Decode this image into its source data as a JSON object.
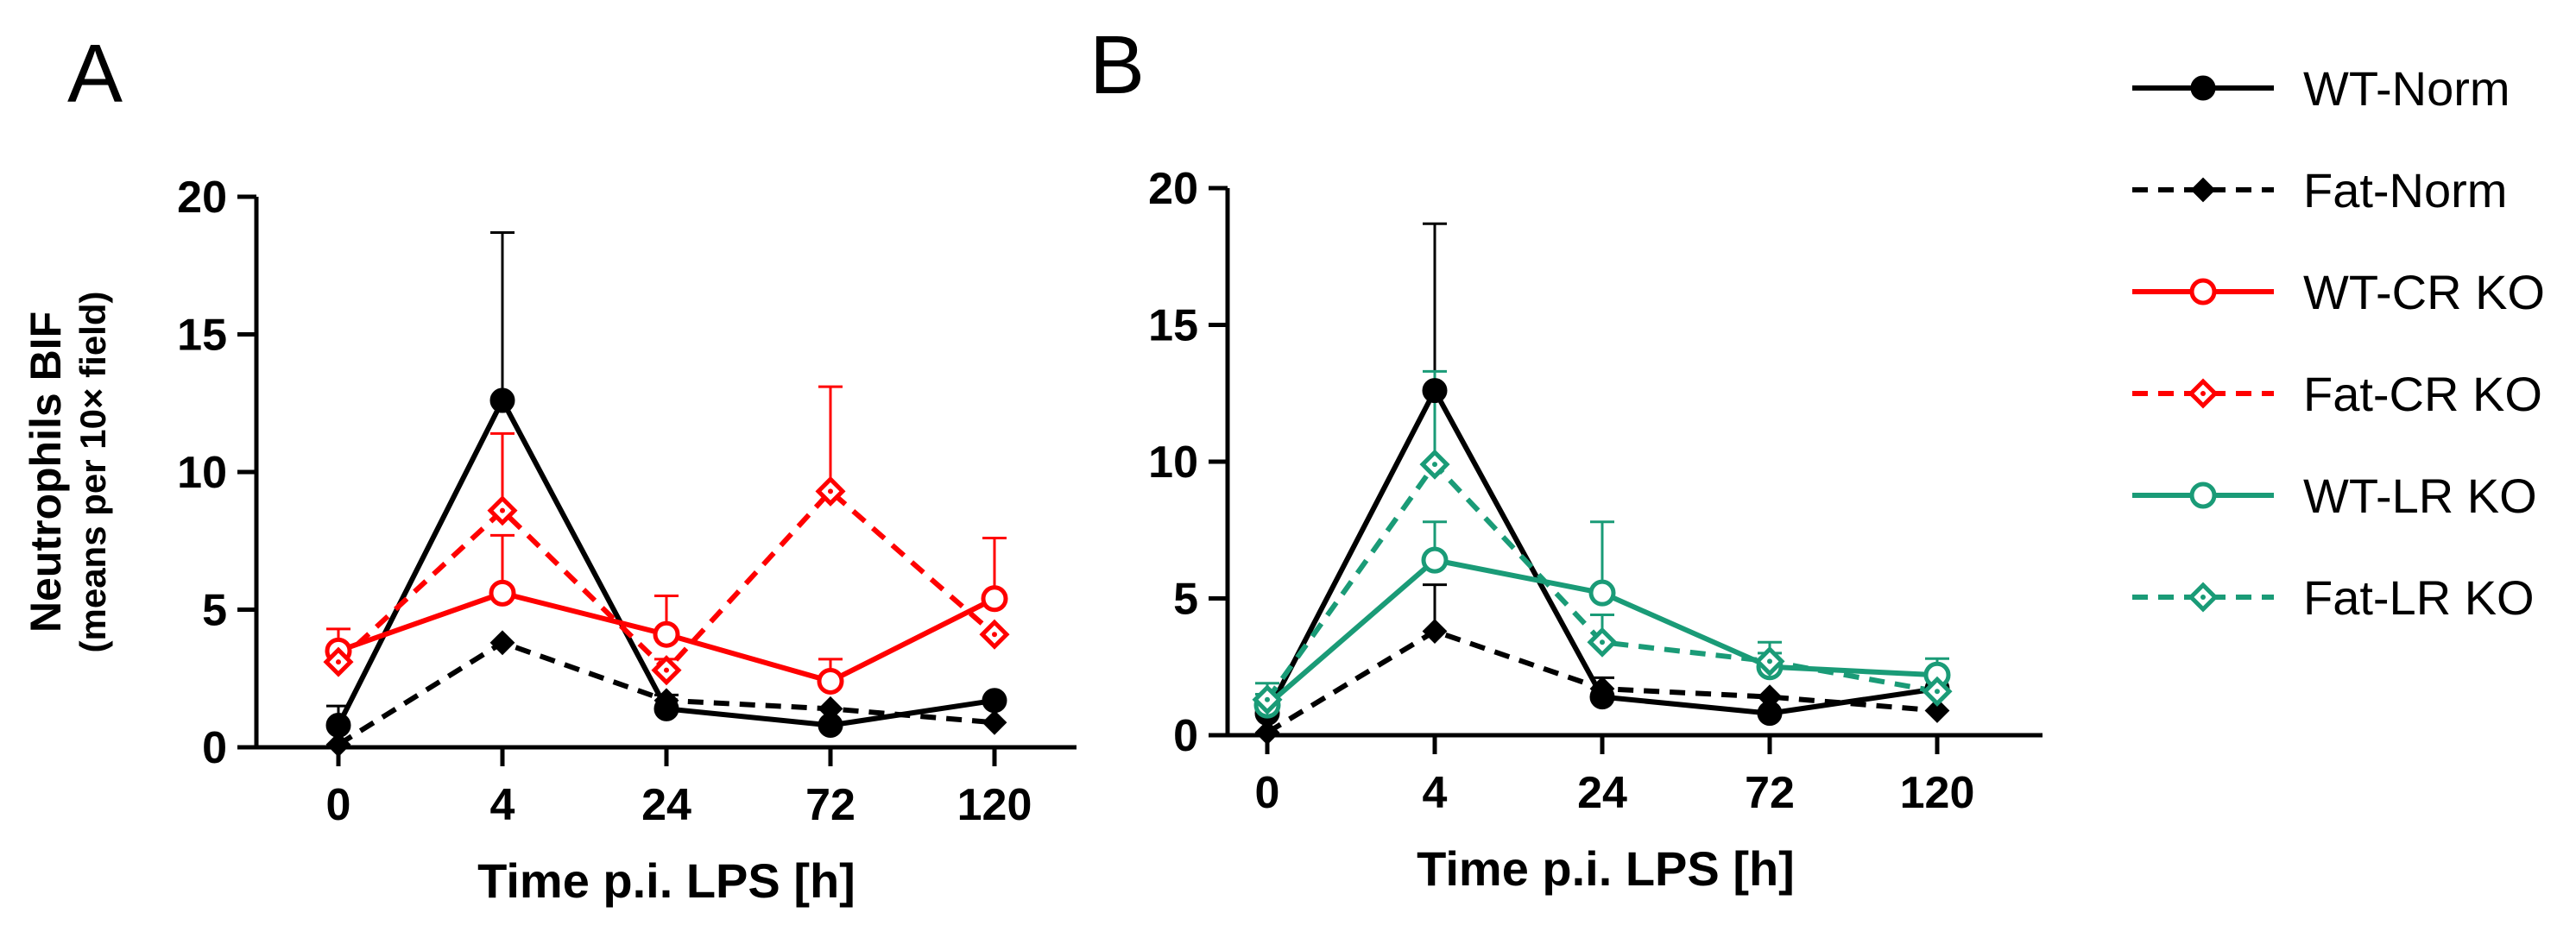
{
  "chart_data": [
    {
      "panel": "A",
      "type": "line",
      "categories": [
        "0",
        "4",
        "24",
        "72",
        "120"
      ],
      "xlabel": "Time p.i. LPS [h]",
      "ylabel": "Neutrophils BIF",
      "ylabel_sub": "(means per 10× field)",
      "ylim": [
        0,
        20
      ],
      "yticks": [
        "0",
        "5",
        "10",
        "15",
        "20"
      ],
      "series": [
        {
          "name": "WT-Norm",
          "color": "#000000",
          "dash": "solid",
          "marker": "circle-filled",
          "values": [
            0.8,
            12.6,
            1.4,
            0.8,
            1.7
          ],
          "err": [
            0.7,
            6.1,
            0,
            0,
            0
          ]
        },
        {
          "name": "Fat-Norm",
          "color": "#000000",
          "dash": "dashed",
          "marker": "diamond-filled",
          "values": [
            0.1,
            3.8,
            1.7,
            1.4,
            0.9
          ],
          "err": [
            0,
            0,
            0.2,
            0,
            0
          ]
        },
        {
          "name": "WT-CR KO",
          "color": "#ff0000",
          "dash": "solid",
          "marker": "circle-open",
          "values": [
            3.5,
            5.6,
            4.1,
            2.4,
            5.4
          ],
          "err": [
            0.8,
            2.1,
            1.4,
            0.8,
            2.2
          ]
        },
        {
          "name": "Fat-CR KO",
          "color": "#ff0000",
          "dash": "dashed",
          "marker": "diamond-open",
          "values": [
            3.1,
            8.6,
            2.8,
            9.3,
            4.1
          ],
          "err": [
            0,
            2.8,
            0.4,
            3.8,
            0
          ]
        }
      ]
    },
    {
      "panel": "B",
      "type": "line",
      "categories": [
        "0",
        "4",
        "24",
        "72",
        "120"
      ],
      "xlabel": "Time p.i. LPS [h]",
      "ylim": [
        0,
        20
      ],
      "yticks": [
        "0",
        "5",
        "10",
        "15",
        "20"
      ],
      "series": [
        {
          "name": "WT-Norm",
          "color": "#000000",
          "dash": "solid",
          "marker": "circle-filled",
          "values": [
            0.8,
            12.6,
            1.4,
            0.8,
            1.7
          ],
          "err": [
            0.7,
            6.1,
            0,
            0,
            0
          ]
        },
        {
          "name": "Fat-Norm",
          "color": "#000000",
          "dash": "dashed",
          "marker": "diamond-filled",
          "values": [
            0.1,
            3.8,
            1.7,
            1.4,
            0.9
          ],
          "err": [
            0,
            1.7,
            0.4,
            0,
            0
          ]
        },
        {
          "name": "WT-LR KO",
          "color": "#1a9b77",
          "dash": "solid",
          "marker": "circle-open",
          "values": [
            1.1,
            6.4,
            5.2,
            2.5,
            2.2
          ],
          "err": [
            0.4,
            1.4,
            2.6,
            0.5,
            0.6
          ]
        },
        {
          "name": "Fat-LR KO",
          "color": "#1a9b77",
          "dash": "dashed",
          "marker": "diamond-open",
          "values": [
            1.3,
            9.9,
            3.4,
            2.7,
            1.6
          ],
          "err": [
            0.6,
            3.4,
            1.0,
            0.7,
            0
          ]
        }
      ]
    }
  ],
  "panel_labels": {
    "a": "A",
    "b": "B"
  },
  "legend": [
    {
      "name": "WT-Norm",
      "color": "#000000",
      "dash": "solid",
      "marker": "circle-filled"
    },
    {
      "name": "Fat-Norm",
      "color": "#000000",
      "dash": "dashed",
      "marker": "diamond-filled"
    },
    {
      "name": "WT-CR KO",
      "color": "#ff0000",
      "dash": "solid",
      "marker": "circle-open"
    },
    {
      "name": "Fat-CR KO",
      "color": "#ff0000",
      "dash": "dashed",
      "marker": "diamond-open"
    },
    {
      "name": "WT-LR KO",
      "color": "#1a9b77",
      "dash": "solid",
      "marker": "circle-open"
    },
    {
      "name": "Fat-LR KO",
      "color": "#1a9b77",
      "dash": "dashed",
      "marker": "diamond-open"
    }
  ]
}
